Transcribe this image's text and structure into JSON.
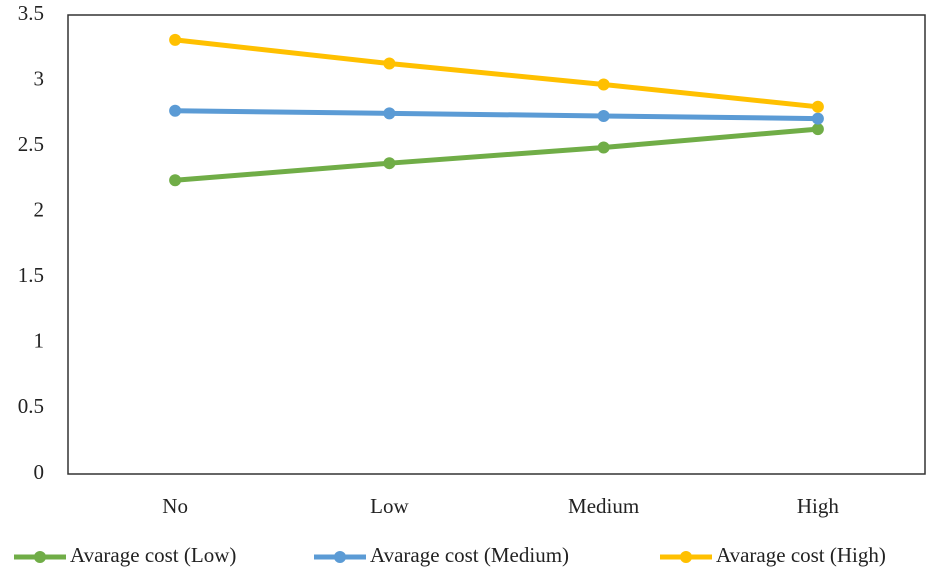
{
  "chart_data": {
    "type": "line",
    "categories": [
      "No",
      "Low",
      "Medium",
      "High"
    ],
    "series": [
      {
        "name": "Avarage cost (Low)",
        "color": "#70ad47",
        "values": [
          2.24,
          2.37,
          2.49,
          2.63
        ]
      },
      {
        "name": "Avarage cost (Medium)",
        "color": "#5b9bd5",
        "values": [
          2.77,
          2.75,
          2.73,
          2.71
        ]
      },
      {
        "name": "Avarage cost (High)",
        "color": "#ffc000",
        "values": [
          3.31,
          3.13,
          2.97,
          2.8
        ]
      }
    ],
    "ylim": [
      0,
      3.5
    ],
    "yticks": [
      0,
      0.5,
      1,
      1.5,
      2,
      2.5,
      3,
      3.5
    ],
    "grid": false,
    "legend": "bottom"
  }
}
